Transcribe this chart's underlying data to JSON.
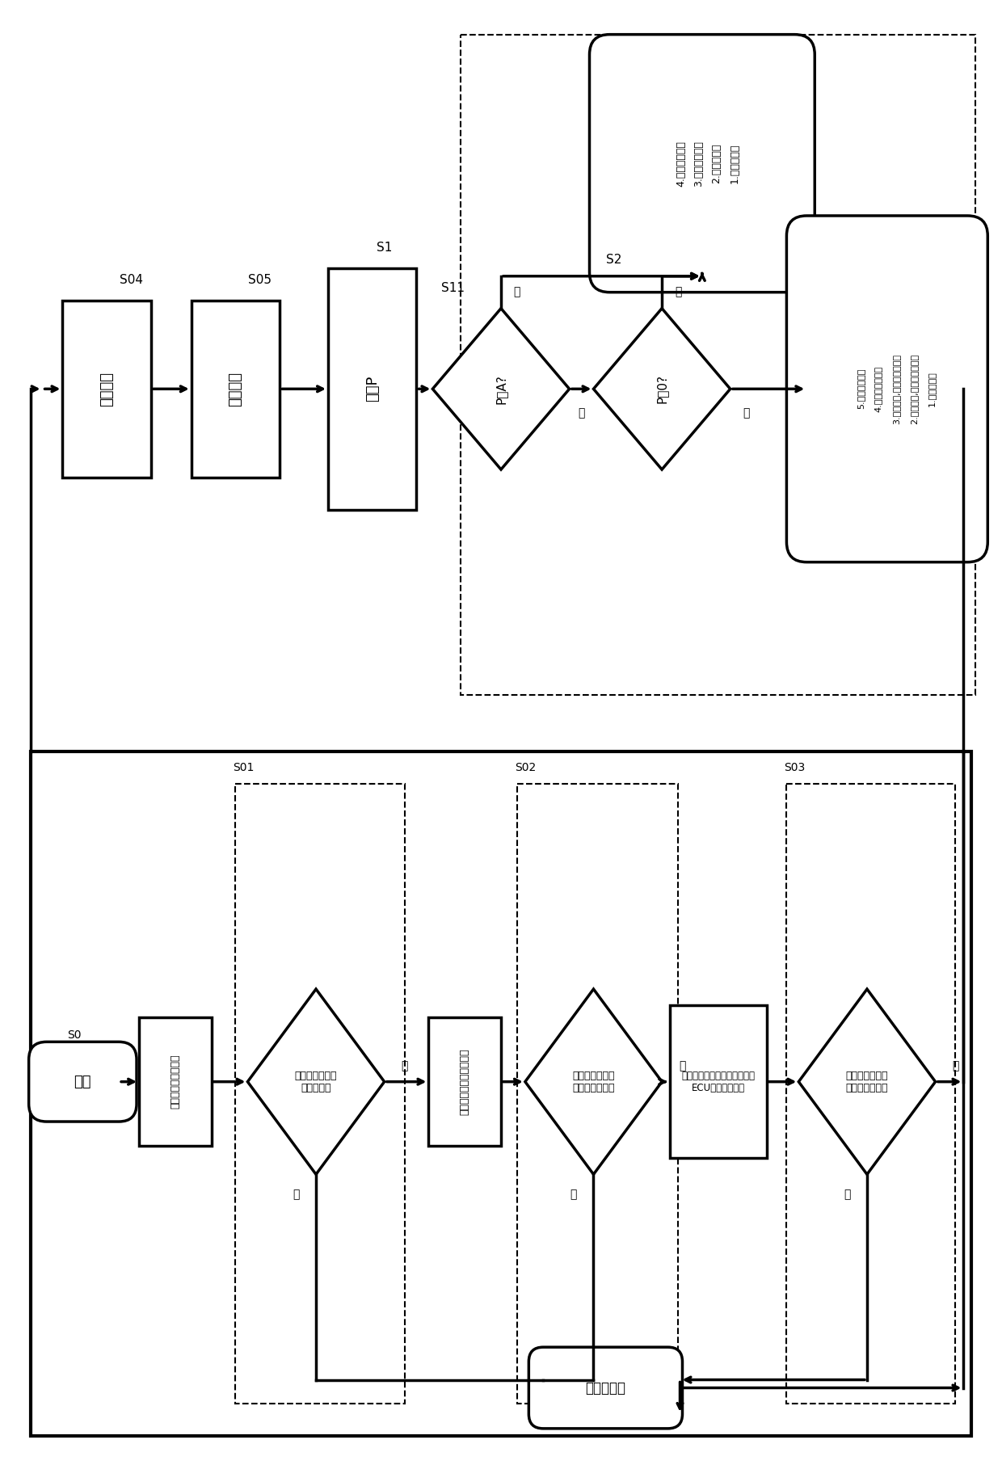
{
  "bg_color": "#ffffff",
  "fig_width": 12.4,
  "fig_height": 18.13,
  "upper": {
    "s04": "S04",
    "s05": "S05",
    "s1": "S1",
    "s11": "S11",
    "s2": "S2",
    "box_jianye": "系统建压",
    "box_penshe": "系统喷射",
    "box_jisuanP": "计算P",
    "d_s11": "P＜A?",
    "d_s2": "P＜0?",
    "yes": "是",
    "no": "否",
    "top_rounded_1": "1.发报报警；",
    "top_rounded_2": "2.停止喷射；",
    "top_rounded_3": "3.启动尺素泵；",
    "top_rounded_4": "4.结束尺素建压",
    "bot_rounded_1": "1.发报报警；",
    "bot_rounded_2": "2.停止喷射,停止尺素运行；",
    "bot_rounded_3": "3.系统运行,停止尺素建压；",
    "bot_rounded_4": "4.结束尺素建压；",
    "bot_rounded_5": "5.结束尺素建压"
  },
  "lower": {
    "s0": "S0",
    "s01": "S01",
    "s02": "S02",
    "s03": "S03",
    "start": "开始",
    "box_wendu": "温度传感器自我诊断",
    "d_wendu": "温度传感器是否\n正常工作？",
    "box_zhenkong": "真空压力传感器自我诊断",
    "d_zhenkong": "真空压力传感器\n是否正常工作？",
    "box_huanjing": "环境压力传感器自我诊断或者\nECU通讯自我诊断",
    "d_huanjing": "环境压力传感器\n是否正常工作？",
    "end": "传感器故障",
    "yes": "是",
    "no": "否"
  }
}
